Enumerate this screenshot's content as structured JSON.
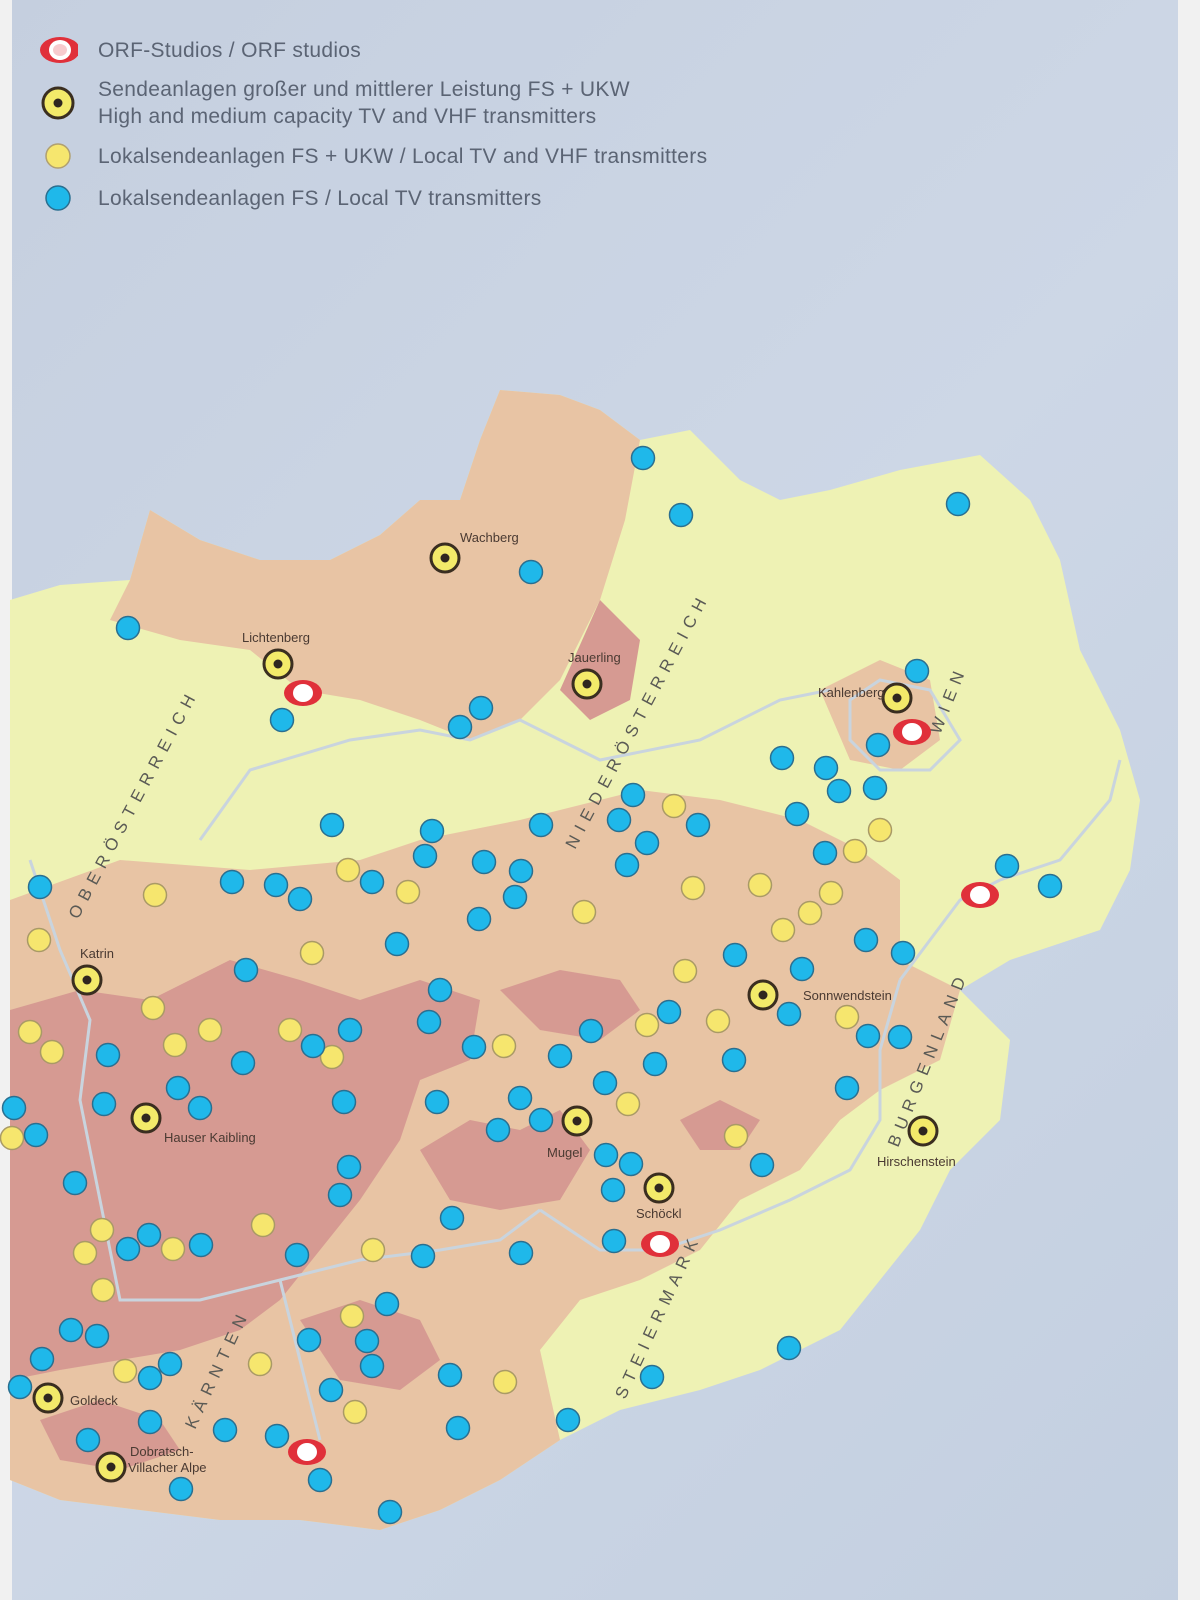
{
  "legend": {
    "items": [
      {
        "icon": "orf-studio-icon",
        "lines": [
          "ORF-Studios / ORF studios"
        ]
      },
      {
        "icon": "high-capacity-transmitter-icon",
        "lines": [
          "Sendeanlagen großer und mittlerer Leistung FS + UKW",
          "High and medium capacity TV and VHF transmitters"
        ]
      },
      {
        "icon": "local-tv-vhf-transmitter-icon",
        "lines": [
          "Lokalsendeanlagen FS + UKW / Local TV and VHF transmitters"
        ]
      },
      {
        "icon": "local-tv-transmitter-icon",
        "lines": [
          "Lokalsendeanlagen FS / Local TV transmitters"
        ]
      }
    ]
  },
  "regions": [
    "OBERÖSTERREICH",
    "NIEDERÖSTERREICH",
    "WIEN",
    "BURGENLAND",
    "STEIERMARK",
    "KÄRNTEN"
  ],
  "transmitters": [
    "Wachberg",
    "Lichtenberg",
    "Jauerling",
    "Kahlenberg",
    "Katrin",
    "Sonnwendstein",
    "Hauser Kaibling",
    "Mugel",
    "Schöckl",
    "Hirschenstein",
    "Goldeck",
    "Dobratsch-",
    "Villacher Alpe"
  ],
  "colors": {
    "background": "#c8d3e3",
    "lowland": "#eef2b4",
    "hills": "#e8c4a4",
    "mountains": "#d69a92",
    "orf_studio": "#e0303a",
    "high_capacity": "#f3ea6a",
    "local_tv_vhf": "#f6e66e",
    "local_tv": "#1fb8ea"
  }
}
